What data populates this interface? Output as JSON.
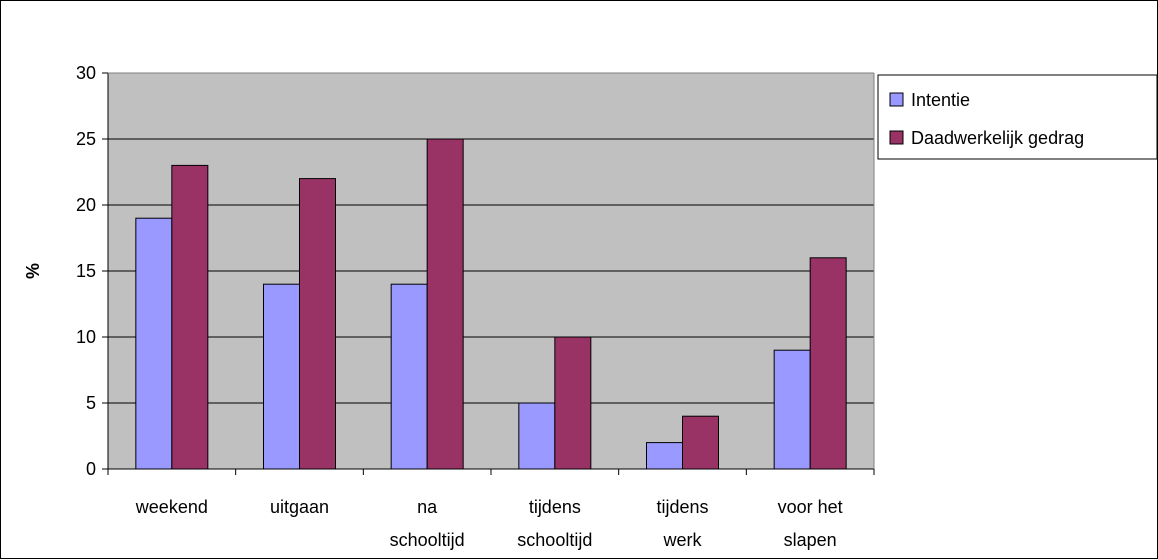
{
  "chart_data": {
    "type": "bar",
    "title": "",
    "xlabel": "",
    "ylabel": "%",
    "ylim": [
      0,
      30
    ],
    "yticks": [
      0,
      5,
      10,
      15,
      20,
      25,
      30
    ],
    "grid": true,
    "legend_position": "right",
    "categories": [
      [
        "weekend"
      ],
      [
        "uitgaan"
      ],
      [
        "na",
        "schooltijd"
      ],
      [
        "tijdens",
        "schooltijd"
      ],
      [
        "tijdens",
        "werk"
      ],
      [
        "voor het",
        "slapen"
      ]
    ],
    "series": [
      {
        "name": "Intentie",
        "color": "#9999ff",
        "values": [
          19,
          14,
          14,
          5,
          2,
          9
        ]
      },
      {
        "name": "Daadwerkelijk gedrag",
        "color": "#993366",
        "values": [
          23,
          22,
          25,
          10,
          4,
          16
        ]
      }
    ],
    "plot_background": "#c0c0c0"
  }
}
